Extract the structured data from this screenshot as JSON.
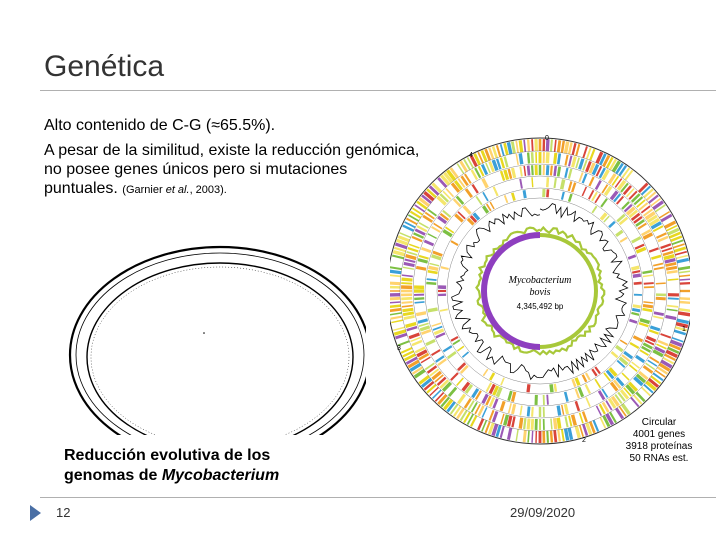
{
  "slide": {
    "title": "Genética",
    "bullet1": "Alto contenido de C-G (≈65.5%).",
    "bullet2": "A pesar de la similitud, existe la reducción genómica, no posee genes únicos pero si mutaciones puntuales.",
    "citation_pre": "(Garnier ",
    "citation_etal": "et al.",
    "citation_post": ", 2003).",
    "caption_pre": "Reducción evolutiva de los genomas de ",
    "caption_em": "Mycobacterium",
    "stats": [
      "Circular",
      "4001 genes",
      "3918 proteínas",
      "50 RNAs est."
    ],
    "footer_number": "12",
    "footer_date": "29/09/2020"
  },
  "genome_map": {
    "organism_line1": "Mycobacterium",
    "organism_line2": "bovis",
    "size_label": "4,345,492 bp",
    "markers": [
      "0",
      "1",
      "2",
      "3",
      "4"
    ]
  },
  "colors": {
    "accent": "#4a6fa5",
    "inner_ring": "#8e3fbf",
    "lime_ring": "#a8c83a"
  }
}
